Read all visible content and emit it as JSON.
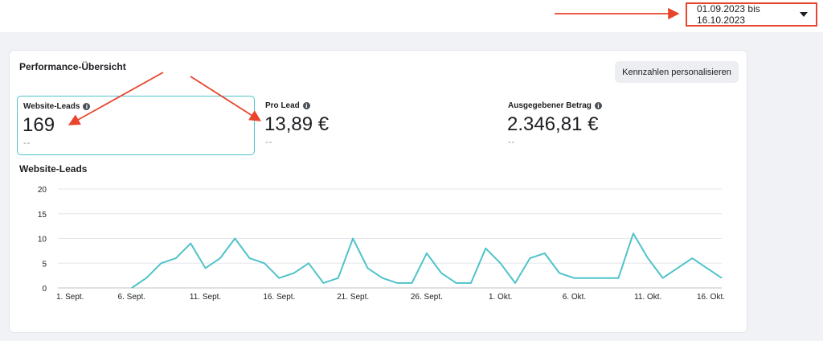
{
  "header": {
    "date_range": "01.09.2023 bis 16.10.2023"
  },
  "card": {
    "title": "Performance-Übersicht",
    "personalize_button": "Kennzahlen personalisieren"
  },
  "metrics": [
    {
      "label": "Website-Leads",
      "value": "169",
      "comparison": "--"
    },
    {
      "label": "Pro Lead",
      "value": "13,89 €",
      "comparison": "--"
    },
    {
      "label": "Ausgegebener Betrag",
      "value": "2.346,81 €",
      "comparison": "--"
    }
  ],
  "colors": {
    "accent": "#4fc3c9",
    "annotation_arrow": "#e8452c",
    "grid": "#e4e6eb"
  },
  "chart_data": {
    "type": "line",
    "title": "Website-Leads",
    "ylim": [
      0,
      20
    ],
    "y_ticks": [
      "0",
      "5",
      "10",
      "15",
      "20"
    ],
    "x_tick_labels": [
      "1. Sept.",
      "6. Sept.",
      "11. Sept.",
      "16. Sept.",
      "21. Sept.",
      "26. Sept.",
      "1. Okt.",
      "6. Okt.",
      "11. Okt.",
      "16. Okt."
    ],
    "x": [
      "01.09.",
      "02.09.",
      "03.09.",
      "04.09.",
      "05.09.",
      "06.09.",
      "07.09.",
      "08.09.",
      "09.09.",
      "10.09.",
      "11.09.",
      "12.09.",
      "13.09.",
      "14.09.",
      "15.09.",
      "16.09.",
      "17.09.",
      "18.09.",
      "19.09.",
      "20.09.",
      "21.09.",
      "22.09.",
      "23.09.",
      "24.09.",
      "25.09.",
      "26.09.",
      "27.09.",
      "28.09.",
      "29.09.",
      "30.09.",
      "01.10.",
      "02.10.",
      "03.10.",
      "04.10.",
      "05.10.",
      "06.10.",
      "07.10.",
      "08.10.",
      "09.10.",
      "10.10.",
      "11.10.",
      "12.10.",
      "13.10.",
      "14.10.",
      "15.10.",
      "16.10."
    ],
    "values": [
      null,
      null,
      null,
      null,
      null,
      0,
      2,
      5,
      6,
      9,
      4,
      6,
      10,
      6,
      5,
      2,
      3,
      5,
      1,
      2,
      10,
      4,
      2,
      1,
      1,
      7,
      3,
      1,
      1,
      8,
      5,
      1,
      6,
      7,
      3,
      2,
      2,
      2,
      2,
      11,
      6,
      2,
      4,
      6,
      4,
      2
    ],
    "grid": true,
    "legend": "none"
  }
}
